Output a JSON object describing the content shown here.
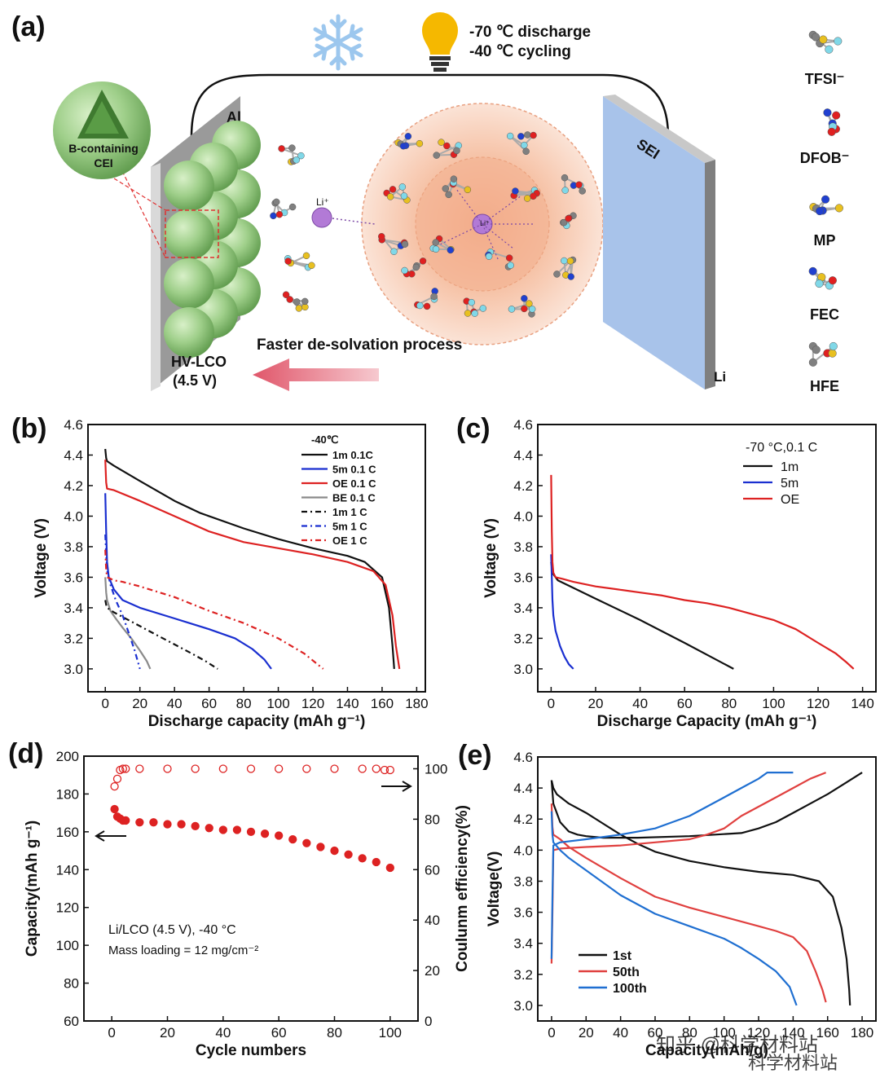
{
  "colors": {
    "black": "#111111",
    "blue": "#1a2fd0",
    "red": "#dd2222",
    "gray": "#8a8a8a",
    "e_blue": "#1f6fd1",
    "e_red": "#e0403f",
    "sphere": "#9fcf8a",
    "sei": "#a8c3ea",
    "arrow": "#e0566a",
    "solvation": "#f6cdb5"
  },
  "panel_a": {
    "label": "(a)",
    "conditions": [
      "-70 ℃ discharge",
      "-40 ℃ cycling"
    ],
    "al_label": "Al",
    "cei_label": [
      "B-containing",
      "CEI"
    ],
    "cathode_label": [
      "HV-LCO",
      "(4.5 V)"
    ],
    "li_plus": "Li⁺",
    "process_label": "Faster de-solvation process",
    "sei_label": "SEI",
    "li_label": "Li",
    "molecules": [
      {
        "name": "TFSI⁻",
        "icon": "tfsi-molecule-icon"
      },
      {
        "name": "DFOB⁻",
        "icon": "dfob-molecule-icon"
      },
      {
        "name": "MP",
        "icon": "mp-molecule-icon"
      },
      {
        "name": "FEC",
        "icon": "fec-molecule-icon"
      },
      {
        "name": "HFE",
        "icon": "hfe-molecule-icon"
      }
    ]
  },
  "chart_data": [
    {
      "id": "b",
      "label": "(b)",
      "type": "line",
      "xlabel": "Discharge capacity (mAh g⁻¹)",
      "ylabel": "Voltage (V)",
      "xlim": [
        -10,
        185
      ],
      "ylim": [
        2.85,
        4.6
      ],
      "xticks": [
        0,
        20,
        40,
        60,
        80,
        100,
        120,
        140,
        160,
        180
      ],
      "yticks": [
        3.0,
        3.2,
        3.4,
        3.6,
        3.8,
        4.0,
        4.2,
        4.4,
        4.6
      ],
      "legend_title": "-40℃",
      "series": [
        {
          "name": "1m 0.1C",
          "color": "#111111",
          "dash": "",
          "x": [
            0,
            0.5,
            1,
            5,
            20,
            40,
            55,
            80,
            100,
            120,
            140,
            150,
            160,
            164,
            166,
            167
          ],
          "y": [
            4.44,
            4.38,
            4.36,
            4.33,
            4.23,
            4.1,
            4.02,
            3.92,
            3.85,
            3.79,
            3.74,
            3.7,
            3.6,
            3.4,
            3.15,
            3.0
          ]
        },
        {
          "name": "5m 0.1 C",
          "color": "#1a2fd0",
          "dash": "",
          "x": [
            0,
            0.5,
            1,
            2,
            5,
            10,
            20,
            40,
            60,
            75,
            85,
            92,
            96
          ],
          "y": [
            4.15,
            3.9,
            3.7,
            3.6,
            3.52,
            3.45,
            3.4,
            3.33,
            3.26,
            3.2,
            3.13,
            3.06,
            3.0
          ]
        },
        {
          "name": "OE 0.1 C",
          "color": "#dd2222",
          "dash": "",
          "x": [
            0,
            0.5,
            1,
            5,
            20,
            40,
            60,
            80,
            100,
            120,
            140,
            155,
            162,
            166,
            168,
            170
          ],
          "y": [
            4.37,
            4.22,
            4.18,
            4.17,
            4.1,
            4.0,
            3.9,
            3.83,
            3.79,
            3.75,
            3.7,
            3.64,
            3.55,
            3.35,
            3.15,
            3.0
          ]
        },
        {
          "name": "BE 0.1 C",
          "color": "#8a8a8a",
          "dash": "",
          "x": [
            0,
            0.5,
            1,
            3,
            6,
            10,
            15,
            20,
            24,
            26
          ],
          "y": [
            3.6,
            3.5,
            3.45,
            3.38,
            3.33,
            3.27,
            3.2,
            3.12,
            3.05,
            3.0
          ]
        },
        {
          "name": "1m 1 C",
          "color": "#111111",
          "dash": "7,4,2,4",
          "x": [
            0,
            0.5,
            1,
            5,
            10,
            20,
            30,
            40,
            50,
            58,
            65
          ],
          "y": [
            3.45,
            3.42,
            3.4,
            3.37,
            3.34,
            3.28,
            3.22,
            3.16,
            3.1,
            3.05,
            3.0
          ]
        },
        {
          "name": "5m 1 C",
          "color": "#1a2fd0",
          "dash": "7,4,2,4",
          "x": [
            0,
            0.5,
            1,
            3,
            6,
            10,
            14,
            17,
            20
          ],
          "y": [
            3.88,
            3.75,
            3.65,
            3.55,
            3.45,
            3.35,
            3.22,
            3.12,
            3.0
          ]
        },
        {
          "name": "OE 1 C",
          "color": "#dd2222",
          "dash": "7,4,2,4",
          "x": [
            0,
            0.5,
            1,
            3,
            5,
            10,
            20,
            40,
            60,
            80,
            100,
            115,
            126
          ],
          "y": [
            3.78,
            3.65,
            3.6,
            3.59,
            3.58,
            3.57,
            3.54,
            3.47,
            3.38,
            3.3,
            3.2,
            3.1,
            3.0
          ]
        }
      ]
    },
    {
      "id": "c",
      "label": "(c)",
      "type": "line",
      "xlabel": "Discharge Capacity (mAh g⁻¹)",
      "ylabel": "Voltage (V)",
      "xlim": [
        -6,
        146
      ],
      "ylim": [
        2.85,
        4.6
      ],
      "xticks": [
        0,
        20,
        40,
        60,
        80,
        100,
        120,
        140
      ],
      "yticks": [
        3.0,
        3.2,
        3.4,
        3.6,
        3.8,
        4.0,
        4.2,
        4.4,
        4.6
      ],
      "legend_title": "-70 °C,0.1 C",
      "series": [
        {
          "name": "1m",
          "color": "#111111",
          "dash": "",
          "x": [
            0,
            0.5,
            1,
            3,
            10,
            20,
            40,
            60,
            82
          ],
          "y": [
            3.7,
            3.65,
            3.62,
            3.58,
            3.53,
            3.46,
            3.32,
            3.17,
            3.0
          ]
        },
        {
          "name": "5m",
          "color": "#1a2fd0",
          "dash": "",
          "x": [
            0,
            0.3,
            0.6,
            1,
            2,
            4,
            6,
            8,
            10
          ],
          "y": [
            3.75,
            3.6,
            3.45,
            3.35,
            3.25,
            3.15,
            3.08,
            3.03,
            3.0
          ]
        },
        {
          "name": "OE",
          "color": "#dd2222",
          "dash": "",
          "x": [
            0,
            0.3,
            0.6,
            1,
            2,
            5,
            10,
            20,
            30,
            40,
            50,
            60,
            70,
            80,
            90,
            100,
            110,
            120,
            128,
            133,
            136
          ],
          "y": [
            4.27,
            3.9,
            3.7,
            3.63,
            3.6,
            3.59,
            3.57,
            3.54,
            3.52,
            3.5,
            3.48,
            3.45,
            3.43,
            3.4,
            3.36,
            3.32,
            3.26,
            3.17,
            3.1,
            3.04,
            3.0
          ]
        }
      ]
    },
    {
      "id": "d",
      "label": "(d)",
      "type": "scatter",
      "xlabel": "Cycle numbers",
      "ylabel": "Capacity(mAh g⁻¹)",
      "y2label": "Coulunm efficiency(%)",
      "xlim": [
        -10,
        110
      ],
      "ylim": [
        60,
        200
      ],
      "y2lim": [
        0,
        105
      ],
      "xticks": [
        0,
        20,
        40,
        60,
        80,
        100
      ],
      "yticks": [
        60,
        80,
        100,
        120,
        140,
        160,
        180,
        200
      ],
      "y2ticks": [
        0,
        20,
        40,
        60,
        80,
        100
      ],
      "note": [
        "Li/LCO (4.5 V), -40 °C",
        "Mass loading = 12 mg/cm⁻²"
      ],
      "series": [
        {
          "name": "Capacity",
          "axis": "left",
          "color": "#dd2222",
          "filled": true,
          "x": [
            1,
            2,
            3,
            4,
            5,
            10,
            15,
            20,
            25,
            30,
            35,
            40,
            45,
            50,
            55,
            60,
            65,
            70,
            75,
            80,
            85,
            90,
            95,
            100
          ],
          "y": [
            172,
            168,
            167,
            166,
            166,
            165,
            165,
            164,
            164,
            163,
            162,
            161,
            161,
            160,
            159,
            158,
            156,
            154,
            152,
            150,
            148,
            146,
            144,
            141
          ]
        },
        {
          "name": "Coulombic efficiency",
          "axis": "right",
          "color": "#dd2222",
          "filled": false,
          "x": [
            1,
            2,
            3,
            4,
            5,
            10,
            20,
            30,
            40,
            50,
            60,
            70,
            80,
            90,
            95,
            98,
            100
          ],
          "y": [
            93,
            96,
            99.5,
            100,
            100,
            100,
            100,
            100,
            100,
            100,
            100,
            100,
            100,
            100,
            100,
            99.5,
            99.5
          ]
        }
      ]
    },
    {
      "id": "e",
      "label": "(e)",
      "type": "line",
      "xlabel": "Capacity(mAh/g)",
      "ylabel": "Voltage(V)",
      "xlim": [
        -8,
        188
      ],
      "ylim": [
        2.9,
        4.6
      ],
      "xticks": [
        0,
        20,
        40,
        60,
        80,
        100,
        120,
        140,
        160,
        180
      ],
      "yticks": [
        3.0,
        3.2,
        3.4,
        3.6,
        3.8,
        4.0,
        4.2,
        4.4,
        4.6
      ],
      "series": [
        {
          "name": "1st",
          "color": "#111111",
          "x": [
            0,
            1,
            5,
            10,
            15,
            20,
            30,
            50,
            80,
            110,
            120,
            130,
            140,
            150,
            160,
            170,
            180
          ],
          "y": [
            4.45,
            4.3,
            4.18,
            4.12,
            4.1,
            4.09,
            4.08,
            4.08,
            4.09,
            4.11,
            4.14,
            4.18,
            4.24,
            4.3,
            4.36,
            4.43,
            4.5
          ]
        },
        {
          "name": "1st",
          "color": "#111111",
          "x": [
            0,
            1,
            3,
            10,
            20,
            30,
            40,
            50,
            60,
            80,
            100,
            120,
            140,
            155,
            163,
            168,
            171,
            172.5,
            173
          ],
          "y": [
            4.45,
            4.4,
            4.36,
            4.3,
            4.24,
            4.17,
            4.1,
            4.04,
            3.99,
            3.93,
            3.89,
            3.86,
            3.84,
            3.8,
            3.7,
            3.5,
            3.3,
            3.1,
            3.0
          ]
        },
        {
          "name": "50th",
          "color": "#e0403f",
          "x": [
            0,
            0.5,
            1,
            5,
            20,
            40,
            60,
            80,
            90,
            100,
            110,
            120,
            130,
            140,
            150,
            159
          ],
          "y": [
            3.27,
            3.6,
            4.0,
            4.01,
            4.02,
            4.03,
            4.05,
            4.07,
            4.1,
            4.14,
            4.22,
            4.28,
            4.34,
            4.4,
            4.46,
            4.5
          ]
        },
        {
          "name": "50th",
          "color": "#e0403f",
          "x": [
            0,
            0.5,
            1,
            5,
            10,
            20,
            40,
            60,
            80,
            100,
            120,
            130,
            140,
            148,
            153,
            157,
            159
          ],
          "y": [
            4.3,
            4.15,
            4.1,
            4.07,
            4.02,
            3.95,
            3.82,
            3.7,
            3.63,
            3.57,
            3.51,
            3.48,
            3.44,
            3.35,
            3.22,
            3.1,
            3.02
          ]
        },
        {
          "name": "100th",
          "color": "#1f6fd1",
          "x": [
            0,
            0.5,
            1,
            5,
            20,
            40,
            60,
            70,
            80,
            90,
            100,
            110,
            120,
            125,
            140
          ],
          "y": [
            3.3,
            3.7,
            4.03,
            4.05,
            4.07,
            4.1,
            4.14,
            4.18,
            4.22,
            4.28,
            4.34,
            4.4,
            4.46,
            4.5,
            4.5
          ]
        },
        {
          "name": "100th",
          "color": "#1f6fd1",
          "x": [
            0,
            0.5,
            1,
            5,
            10,
            20,
            30,
            40,
            60,
            80,
            100,
            110,
            120,
            130,
            138,
            142
          ],
          "y": [
            4.25,
            4.1,
            4.05,
            4.0,
            3.95,
            3.87,
            3.79,
            3.71,
            3.59,
            3.51,
            3.43,
            3.37,
            3.3,
            3.22,
            3.12,
            3.0
          ]
        }
      ],
      "legend": [
        "1st",
        "50th",
        "100th"
      ]
    }
  ],
  "watermark": {
    "text1": "知乎 @科学材料站",
    "text2": "科学材料站"
  }
}
